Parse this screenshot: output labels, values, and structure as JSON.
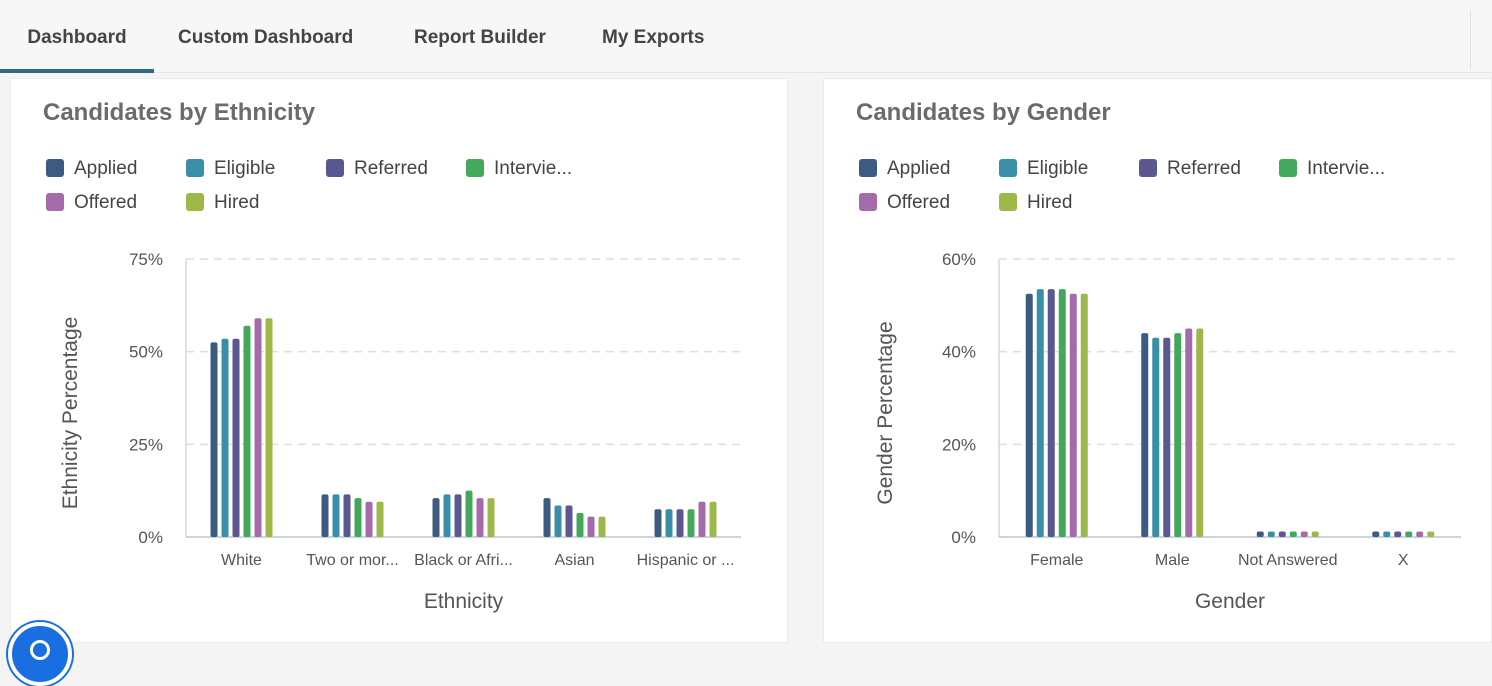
{
  "nav": {
    "tabs": [
      {
        "label": "Dashboard",
        "active": true
      },
      {
        "label": "Custom Dashboard",
        "active": false
      },
      {
        "label": "Report Builder",
        "active": false
      },
      {
        "label": "My Exports",
        "active": false
      }
    ],
    "active_color": "#2d6a86"
  },
  "colors": {
    "Applied": "#3d5a80",
    "Eligible": "#3a8fa8",
    "Referred": "#5b5791",
    "Interviewed": "#44a85c",
    "Offered": "#a56aa9",
    "Hired": "#9db848"
  },
  "legend_labels": [
    "Applied",
    "Eligible",
    "Referred",
    "Intervie...",
    "Offered",
    "Hired"
  ],
  "chart_data": [
    {
      "type": "bar",
      "title": "Candidates by Ethnicity",
      "xlabel": "Ethnicity",
      "ylabel": "Ethnicity Percentage",
      "ylim": [
        0,
        75
      ],
      "yticks": [
        "0%",
        "25%",
        "50%",
        "75%"
      ],
      "yticks_values": [
        0,
        25,
        50,
        75
      ],
      "grid": true,
      "legend_position": "top",
      "categories": [
        "White",
        "Two or mor...",
        "Black or Afri...",
        "Asian",
        "Hispanic or ..."
      ],
      "series": [
        {
          "name": "Applied",
          "values": [
            52.5,
            11.5,
            10.5,
            10.5,
            7.5
          ]
        },
        {
          "name": "Eligible",
          "values": [
            53.5,
            11.5,
            11.5,
            8.5,
            7.5
          ]
        },
        {
          "name": "Referred",
          "values": [
            53.5,
            11.5,
            11.5,
            8.5,
            7.5
          ]
        },
        {
          "name": "Interviewed",
          "values": [
            57,
            10.5,
            12.5,
            6.5,
            7.5
          ]
        },
        {
          "name": "Offered",
          "values": [
            59,
            9.5,
            10.5,
            5.5,
            9.5
          ]
        },
        {
          "name": "Hired",
          "values": [
            59,
            9.5,
            10.5,
            5.5,
            9.5
          ]
        }
      ]
    },
    {
      "type": "bar",
      "title": "Candidates by Gender",
      "xlabel": "Gender",
      "ylabel": "Gender Percentage",
      "ylim": [
        0,
        60
      ],
      "yticks": [
        "0%",
        "20%",
        "40%",
        "60%"
      ],
      "yticks_values": [
        0,
        20,
        40,
        60
      ],
      "grid": true,
      "legend_position": "top",
      "categories": [
        "Female",
        "Male",
        "Not Answered",
        "X"
      ],
      "series": [
        {
          "name": "Applied",
          "values": [
            52.5,
            44,
            1.2,
            1.2
          ]
        },
        {
          "name": "Eligible",
          "values": [
            53.5,
            43,
            1.2,
            1.2
          ]
        },
        {
          "name": "Referred",
          "values": [
            53.5,
            43,
            1.2,
            1.2
          ]
        },
        {
          "name": "Interviewed",
          "values": [
            53.5,
            44,
            1.2,
            1.2
          ]
        },
        {
          "name": "Offered",
          "values": [
            52.5,
            45,
            1.2,
            1.2
          ]
        },
        {
          "name": "Hired",
          "values": [
            52.5,
            45,
            1.2,
            1.2
          ]
        }
      ]
    }
  ]
}
